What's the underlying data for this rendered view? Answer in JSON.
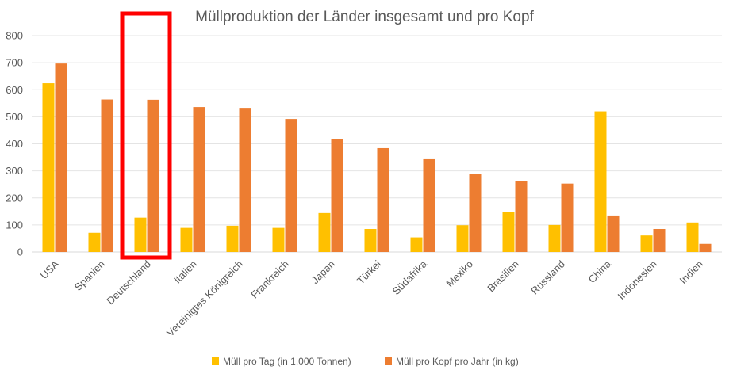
{
  "chart_data": {
    "type": "bar",
    "title": "Müllproduktion der Länder insgesamt und pro Kopf",
    "xlabel": "",
    "ylabel": "",
    "ylim": [
      0,
      800
    ],
    "yticks": [
      0,
      100,
      200,
      300,
      400,
      500,
      600,
      700,
      800
    ],
    "grid": true,
    "legend_position": "bottom",
    "categories": [
      "USA",
      "Spanien",
      "Deutschland",
      "Italien",
      "Vereinigtes Königreich",
      "Frankreich",
      "Japan",
      "Türkei",
      "Südafrika",
      "Mexiko",
      "Brasilien",
      "Russland",
      "China",
      "Indonesien",
      "Indien"
    ],
    "series": [
      {
        "name": "Müll pro Tag (in 1.000 Tonnen)",
        "color": "#FFC000",
        "values": [
          624,
          71,
          127,
          89,
          97,
          89,
          144,
          85,
          54,
          99,
          149,
          100,
          520,
          61,
          109
        ]
      },
      {
        "name": "Müll pro Kopf pro Jahr (in kg)",
        "color": "#ED7D31",
        "values": [
          697,
          564,
          563,
          536,
          533,
          492,
          417,
          384,
          343,
          288,
          261,
          253,
          135,
          85,
          30
        ]
      }
    ],
    "highlight": {
      "category": "Deutschland",
      "color": "#FF0000"
    }
  }
}
